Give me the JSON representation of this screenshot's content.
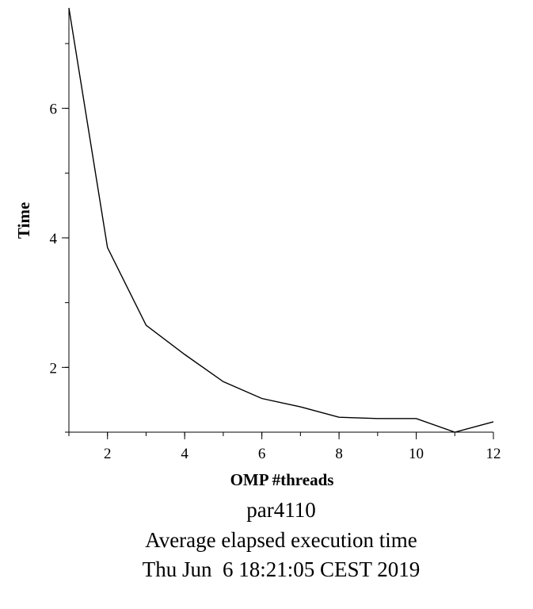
{
  "chart_data": {
    "type": "line",
    "xlabel": "OMP #threads",
    "ylabel": "Time",
    "xlim": [
      1,
      12
    ],
    "ylim": [
      1.0,
      7.55
    ],
    "x_ticks": [
      2,
      4,
      6,
      8,
      10,
      12
    ],
    "y_ticks": [
      2,
      4,
      6
    ],
    "grid": false,
    "series": [
      {
        "x": [
          1,
          2,
          3,
          4,
          5,
          6,
          7,
          8,
          9,
          10,
          11,
          12
        ],
        "values": [
          7.55,
          3.85,
          2.65,
          2.2,
          1.78,
          1.52,
          1.39,
          1.23,
          1.21,
          1.21,
          1.0,
          1.16
        ]
      }
    ]
  },
  "captions": {
    "machine": "par4110",
    "description": "Average elapsed execution time",
    "timestamp": "Thu Jun  6 18:21:05 CEST 2019"
  }
}
